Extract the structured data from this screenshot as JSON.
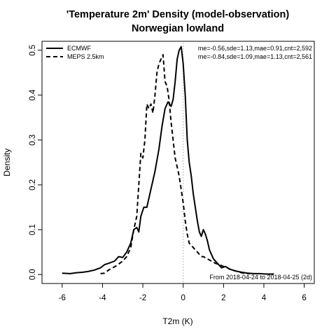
{
  "chart_data": {
    "type": "line",
    "title": "'Temperature 2m' Density (model-observation)",
    "subtitle": "Norwegian lowland",
    "xlabel": "T2m (K)",
    "ylabel": "Density",
    "xlim": [
      -7,
      6.5
    ],
    "ylim": [
      -0.02,
      0.52
    ],
    "xticks": [
      -6,
      -4,
      -2,
      0,
      2,
      4,
      6
    ],
    "yticks": [
      0.0,
      0.1,
      0.2,
      0.3,
      0.4,
      0.5
    ],
    "xtick_labels": [
      "-6",
      "-4",
      "-2",
      "0",
      "2",
      "4",
      "6"
    ],
    "ytick_labels": [
      "0.0",
      "0.1",
      "0.2",
      "0.3",
      "0.4",
      "0.5"
    ],
    "reference_line_x": 0,
    "grid": false,
    "legend_position": "top-left",
    "note": "From 2018-04-24 to 2018-04-25 (2d)",
    "series": [
      {
        "name": "ECMWF",
        "stats": "me=-0.56,sde=1.13,mae=0.91,cnt=2,592",
        "style": "solid",
        "x": [
          -6.0,
          -5.6,
          -5.3,
          -5.0,
          -4.7,
          -4.4,
          -4.1,
          -3.9,
          -3.7,
          -3.4,
          -3.2,
          -3.0,
          -2.8,
          -2.6,
          -2.45,
          -2.3,
          -2.2,
          -2.1,
          -1.95,
          -1.8,
          -1.6,
          -1.4,
          -1.2,
          -1.05,
          -0.9,
          -0.75,
          -0.6,
          -0.5,
          -0.4,
          -0.3,
          -0.2,
          -0.1,
          0.0,
          0.1,
          0.2,
          0.3,
          0.4,
          0.5,
          0.6,
          0.7,
          0.8,
          0.9,
          1.0,
          1.1,
          1.2,
          1.3,
          1.5,
          1.7,
          1.9,
          2.1,
          2.3,
          2.6,
          2.9,
          3.2,
          3.5,
          3.8,
          4.1,
          4.5
        ],
        "y": [
          0.003,
          0.002,
          0.004,
          0.005,
          0.007,
          0.01,
          0.015,
          0.022,
          0.025,
          0.03,
          0.04,
          0.038,
          0.05,
          0.07,
          0.1,
          0.105,
          0.095,
          0.13,
          0.15,
          0.15,
          0.19,
          0.23,
          0.28,
          0.33,
          0.37,
          0.385,
          0.375,
          0.39,
          0.43,
          0.48,
          0.5,
          0.508,
          0.47,
          0.4,
          0.3,
          0.25,
          0.22,
          0.18,
          0.15,
          0.12,
          0.095,
          0.085,
          0.1,
          0.09,
          0.075,
          0.055,
          0.035,
          0.025,
          0.015,
          0.018,
          0.012,
          0.008,
          0.005,
          0.003,
          0.002,
          0.002,
          0.001,
          0.001
        ]
      },
      {
        "name": "MEPS 2.5km",
        "stats": "me=-0.84,sde=1.09,mae=1.13,cnt=2,561",
        "style": "dashed",
        "x": [
          -4.1,
          -3.9,
          -3.7,
          -3.5,
          -3.3,
          -3.0,
          -2.8,
          -2.6,
          -2.45,
          -2.3,
          -2.2,
          -2.1,
          -2.0,
          -1.9,
          -1.8,
          -1.7,
          -1.6,
          -1.5,
          -1.4,
          -1.3,
          -1.2,
          -1.1,
          -1.0,
          -0.9,
          -0.8,
          -0.7,
          -0.6,
          -0.5,
          -0.4,
          -0.3,
          -0.2,
          -0.1,
          0.0,
          0.1,
          0.2,
          0.3,
          0.4,
          0.5,
          0.6,
          0.7,
          0.8,
          0.9,
          1.0,
          1.2,
          1.4,
          1.6,
          1.8,
          2.0,
          2.2,
          2.4,
          2.6,
          2.8,
          3.0,
          3.3
        ],
        "y": [
          0.002,
          0.003,
          0.01,
          0.015,
          0.02,
          0.03,
          0.04,
          0.06,
          0.1,
          0.13,
          0.2,
          0.27,
          0.26,
          0.3,
          0.38,
          0.37,
          0.38,
          0.36,
          0.4,
          0.45,
          0.47,
          0.48,
          0.49,
          0.43,
          0.42,
          0.39,
          0.34,
          0.3,
          0.26,
          0.24,
          0.22,
          0.19,
          0.16,
          0.12,
          0.09,
          0.07,
          0.065,
          0.06,
          0.055,
          0.05,
          0.045,
          0.04,
          0.04,
          0.035,
          0.03,
          0.025,
          0.022,
          0.018,
          0.015,
          0.01,
          0.008,
          0.005,
          0.003,
          0.002
        ]
      }
    ]
  }
}
